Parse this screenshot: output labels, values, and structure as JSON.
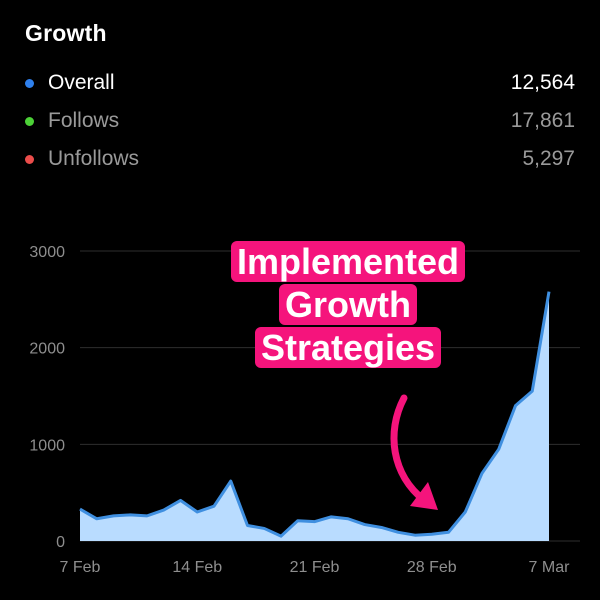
{
  "header": {
    "title": "Growth"
  },
  "legend": [
    {
      "label": "Overall",
      "value": "12,564",
      "color": "#2f80ed"
    },
    {
      "label": "Follows",
      "value": "17,861",
      "color": "#4cd137"
    },
    {
      "label": "Unfollows",
      "value": "5,297",
      "color": "#eb4d4b"
    }
  ],
  "annotation": {
    "lines": [
      "Implemented",
      "Growth",
      "Strategies"
    ],
    "color": "#f5147c"
  },
  "chart_data": {
    "type": "area",
    "title": "",
    "xlabel": "",
    "ylabel": "",
    "x_tick_labels": [
      "7 Feb",
      "14 Feb",
      "21 Feb",
      "28 Feb",
      "7 Mar"
    ],
    "y_tick_labels": [
      "0",
      "1000",
      "2000",
      "3000"
    ],
    "ylim": [
      0,
      3000
    ],
    "grid": true,
    "line_color": "#3f8fe0",
    "fill_color": "#b9dcff",
    "series": [
      {
        "values": [
          330,
          230,
          260,
          270,
          260,
          320,
          420,
          300,
          360,
          620,
          160,
          130,
          50,
          210,
          200,
          250,
          230,
          170,
          140,
          90,
          60,
          70,
          90,
          300,
          700,
          950,
          1400,
          1550,
          2580
        ]
      }
    ]
  }
}
